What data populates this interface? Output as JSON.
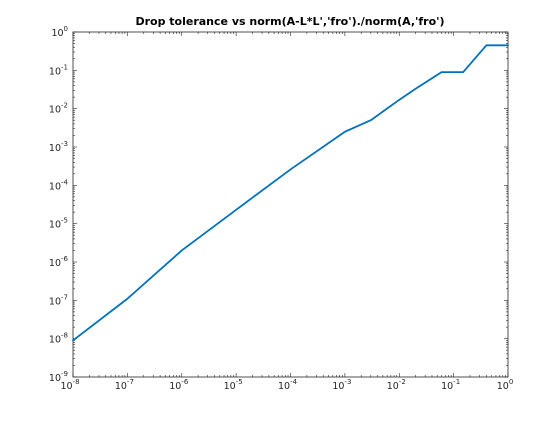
{
  "chart_data": {
    "type": "line",
    "title": "Drop tolerance vs norm(A-L*L','fro')./norm(A,'fro')",
    "xlabel": "",
    "ylabel": "",
    "x_scale": "log",
    "y_scale": "log",
    "xlim": [
      1e-08,
      1
    ],
    "ylim": [
      1e-09,
      1
    ],
    "grid": false,
    "line_color": "#0072BD",
    "x_tick_labels": [
      {
        "base": "10",
        "exp": "-8",
        "value": 1e-08
      },
      {
        "base": "10",
        "exp": "-7",
        "value": 1e-07
      },
      {
        "base": "10",
        "exp": "-6",
        "value": 1e-06
      },
      {
        "base": "10",
        "exp": "-5",
        "value": 1e-05
      },
      {
        "base": "10",
        "exp": "-4",
        "value": 0.0001
      },
      {
        "base": "10",
        "exp": "-3",
        "value": 0.001
      },
      {
        "base": "10",
        "exp": "-2",
        "value": 0.01
      },
      {
        "base": "10",
        "exp": "-1",
        "value": 0.1
      },
      {
        "base": "10",
        "exp": "0",
        "value": 1
      }
    ],
    "y_tick_labels": [
      {
        "base": "10",
        "exp": "-9",
        "value": 1e-09
      },
      {
        "base": "10",
        "exp": "-8",
        "value": 1e-08
      },
      {
        "base": "10",
        "exp": "-7",
        "value": 1e-07
      },
      {
        "base": "10",
        "exp": "-6",
        "value": 1e-06
      },
      {
        "base": "10",
        "exp": "-5",
        "value": 1e-05
      },
      {
        "base": "10",
        "exp": "-4",
        "value": 0.0001
      },
      {
        "base": "10",
        "exp": "-3",
        "value": 0.001
      },
      {
        "base": "10",
        "exp": "-2",
        "value": 0.01
      },
      {
        "base": "10",
        "exp": "-1",
        "value": 0.1
      },
      {
        "base": "10",
        "exp": "0",
        "value": 1
      }
    ],
    "series": [
      {
        "x": [
          1e-08,
          1e-07,
          1e-06,
          1e-05,
          0.0001,
          0.001,
          0.003,
          0.01,
          0.02,
          0.06,
          0.15,
          0.4,
          1
        ],
        "y": [
          9e-09,
          1.1e-07,
          2e-06,
          2.3e-05,
          0.00026,
          0.0025,
          0.005,
          0.017,
          0.033,
          0.09,
          0.09,
          0.45,
          0.45
        ]
      }
    ]
  }
}
